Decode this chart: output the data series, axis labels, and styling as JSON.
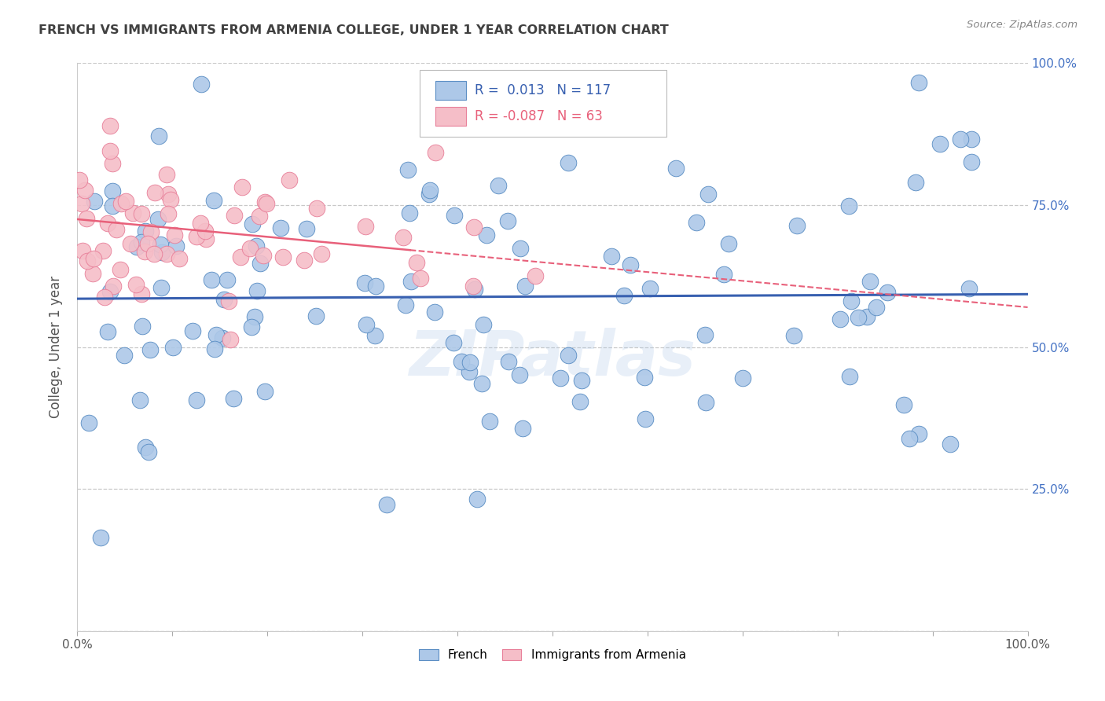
{
  "title": "FRENCH VS IMMIGRANTS FROM ARMENIA COLLEGE, UNDER 1 YEAR CORRELATION CHART",
  "source": "Source: ZipAtlas.com",
  "ylabel": "College, Under 1 year",
  "watermark": "ZIPatlas",
  "legend_label1": "French",
  "legend_label2": "Immigrants from Armenia",
  "r1": 0.013,
  "n1": 117,
  "r2": -0.087,
  "n2": 63,
  "blue_color": "#adc8e8",
  "blue_edge_color": "#5b8ec4",
  "blue_line_color": "#3860b0",
  "pink_color": "#f5bec8",
  "pink_edge_color": "#e8809a",
  "pink_line_color": "#e8607a",
  "title_color": "#404040",
  "source_color": "#888888",
  "right_tick_color": "#4472c4",
  "background_color": "#ffffff",
  "grid_color": "#c8c8c8",
  "watermark_color": "#adc8e8",
  "seed": 99,
  "blue_intercept": 0.585,
  "blue_slope": 0.008,
  "pink_intercept": 0.725,
  "pink_slope": -0.155
}
